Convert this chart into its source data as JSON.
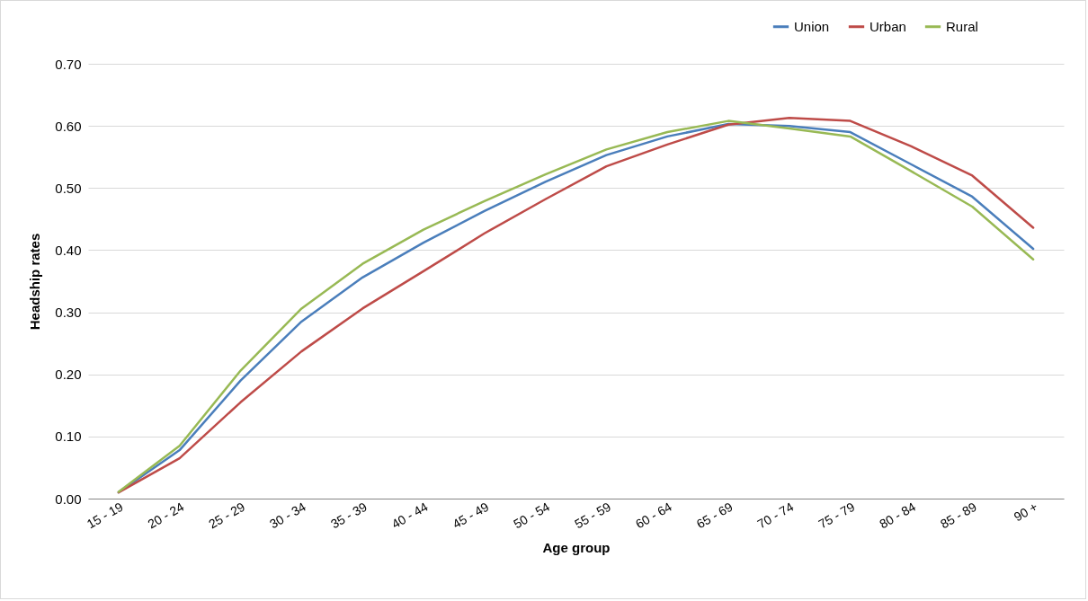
{
  "chart_data": {
    "type": "line",
    "xlabel": "Age group",
    "ylabel": "Headship rates",
    "categories": [
      "15 - 19",
      "20 - 24",
      "25 - 29",
      "30 - 34",
      "35 - 39",
      "40 - 44",
      "45 - 49",
      "50 - 54",
      "55 - 59",
      "60 - 64",
      "65 - 69",
      "70 - 74",
      "75 - 79",
      "80 - 84",
      "85 - 89",
      "90 +"
    ],
    "series": [
      {
        "name": "Union",
        "color": "#4a7ebb",
        "values": [
          0.01,
          0.078,
          0.19,
          0.285,
          0.356,
          0.412,
          0.463,
          0.51,
          0.553,
          0.583,
          0.603,
          0.6,
          0.59,
          0.538,
          0.486,
          0.402
        ]
      },
      {
        "name": "Urban",
        "color": "#be4b48",
        "values": [
          0.01,
          0.065,
          0.155,
          0.237,
          0.306,
          0.366,
          0.427,
          0.482,
          0.535,
          0.57,
          0.602,
          0.613,
          0.608,
          0.567,
          0.52,
          0.436
        ]
      },
      {
        "name": "Rural",
        "color": "#98b954",
        "values": [
          0.011,
          0.085,
          0.206,
          0.306,
          0.378,
          0.433,
          0.479,
          0.522,
          0.562,
          0.59,
          0.608,
          0.596,
          0.583,
          0.527,
          0.47,
          0.385
        ]
      }
    ],
    "ylim": [
      0,
      0.7
    ],
    "yticks": [
      {
        "value": 0,
        "label": "0.00"
      },
      {
        "value": 0.1,
        "label": "0.10"
      },
      {
        "value": 0.2,
        "label": "0.20"
      },
      {
        "value": 0.3,
        "label": "0.30"
      },
      {
        "value": 0.4,
        "label": "0.40"
      },
      {
        "value": 0.5,
        "label": "0.50"
      },
      {
        "value": 0.6,
        "label": "0.60"
      },
      {
        "value": 0.7,
        "label": "0.70"
      }
    ],
    "grid": "y",
    "legend": "top right",
    "marker": "none",
    "line_style": "solid"
  }
}
